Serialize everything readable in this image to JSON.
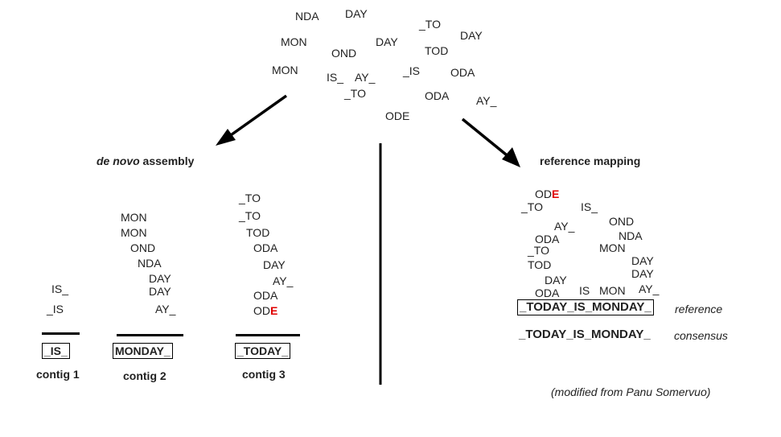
{
  "reads": {
    "pool": [
      "NDA",
      "DAY",
      "MON",
      "OND",
      "DAY",
      "_TO",
      "DAY",
      "TOD",
      "MON",
      "IS_",
      "AY_",
      "_IS",
      "ODA",
      "_TO",
      "ODA",
      "AY_",
      "ODE"
    ]
  },
  "denovo": {
    "title_italic": "de novo",
    "title_rest": " assembly",
    "contig1": {
      "reads": [
        "IS_",
        "_IS"
      ],
      "result": "_IS_",
      "label": "contig 1"
    },
    "contig2": {
      "reads": [
        "MON",
        "MON",
        "OND",
        "NDA",
        "DAY",
        "DAY",
        "AY_"
      ],
      "result": "MONDAY_",
      "label": "contig 2"
    },
    "contig3": {
      "reads": [
        "_TO",
        "_TO",
        "TOD",
        "ODA",
        "DAY",
        "AY_",
        "ODA",
        "OD"
      ],
      "error_letter": "E",
      "result": "_TODAY_",
      "label": "contig 3"
    }
  },
  "refmap": {
    "title": "reference mapping",
    "reads": [
      "OD",
      "_TO",
      "IS_",
      "OND",
      "AY_",
      "NDA",
      "ODA",
      "MON",
      "_TO",
      "DAY",
      "TOD",
      "DAY",
      "DAY",
      "AY_",
      "ODA",
      "IS",
      "MON"
    ],
    "error_letter": "E",
    "reference": "_TODAY_IS_MONDAY_",
    "reference_label": "reference",
    "consensus": "_TODAY_IS_MONDAY_",
    "consensus_label": "consensus"
  },
  "credit": "(modified from Panu Somervuo)"
}
